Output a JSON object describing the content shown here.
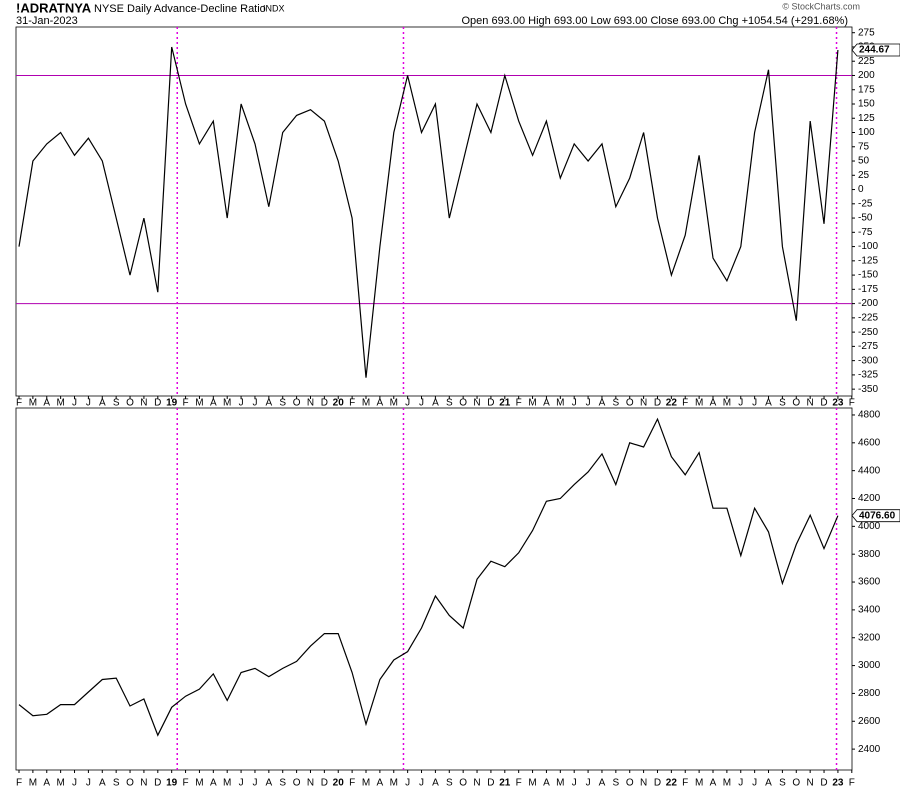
{
  "header": {
    "symbol": "!ADRATNYA",
    "name": "NYSE Daily Advance-Decline Ratio",
    "exchange": "INDX",
    "date": "31-Jan-2023",
    "quote": "Open 693.00  High 693.00  Low 693.00  Close 693.00  Chg +1054.54 (+291.68%)",
    "credit": "© StockCharts.com"
  },
  "chart_data": [
    {
      "type": "line",
      "color": "#000000",
      "categories": [
        "F",
        "M",
        "A",
        "M",
        "J",
        "J",
        "A",
        "S",
        "O",
        "N",
        "D",
        "19",
        "F",
        "M",
        "A",
        "M",
        "J",
        "J",
        "A",
        "S",
        "O",
        "N",
        "D",
        "20",
        "F",
        "M",
        "A",
        "M",
        "J",
        "J",
        "A",
        "S",
        "O",
        "N",
        "D",
        "21",
        "F",
        "M",
        "A",
        "M",
        "J",
        "J",
        "A",
        "S",
        "O",
        "N",
        "D",
        "22",
        "F",
        "M",
        "A",
        "M",
        "J",
        "J",
        "A",
        "S",
        "O",
        "N",
        "D",
        "23",
        "F"
      ],
      "values": [
        -100,
        50,
        80,
        100,
        60,
        90,
        50,
        -50,
        -150,
        -50,
        -180,
        250,
        150,
        80,
        120,
        -50,
        150,
        80,
        -30,
        100,
        130,
        140,
        120,
        50,
        -50,
        -330,
        -100,
        100,
        200,
        100,
        150,
        -50,
        50,
        150,
        100,
        200,
        120,
        60,
        120,
        20,
        80,
        50,
        80,
        -30,
        20,
        100,
        -50,
        -150,
        -80,
        60,
        -120,
        -160,
        -100,
        100,
        210,
        -100,
        -230,
        120,
        -60,
        244.67,
        null
      ],
      "last_label": "244.67",
      "ylim": [
        -362,
        285
      ],
      "yticks": [
        -350,
        -325,
        -300,
        -275,
        -250,
        -225,
        -200,
        -175,
        -150,
        -125,
        -100,
        -75,
        -50,
        -25,
        0,
        25,
        50,
        75,
        100,
        125,
        150,
        175,
        200,
        225,
        250,
        275
      ],
      "hlines": [
        200,
        -200
      ],
      "hline_color": "#b000b0",
      "vlines": [
        11.4,
        27.7,
        58.9
      ],
      "vline_color": "#e000e0"
    },
    {
      "type": "line",
      "color": "#000000",
      "categories": [
        "F",
        "M",
        "A",
        "M",
        "J",
        "J",
        "A",
        "S",
        "O",
        "N",
        "D",
        "19",
        "F",
        "M",
        "A",
        "M",
        "J",
        "J",
        "A",
        "S",
        "O",
        "N",
        "D",
        "20",
        "F",
        "M",
        "A",
        "M",
        "J",
        "J",
        "A",
        "S",
        "O",
        "N",
        "D",
        "21",
        "F",
        "M",
        "A",
        "M",
        "J",
        "J",
        "A",
        "S",
        "O",
        "N",
        "D",
        "22",
        "F",
        "M",
        "A",
        "M",
        "J",
        "J",
        "A",
        "S",
        "O",
        "N",
        "D",
        "23",
        "F"
      ],
      "values": [
        2720,
        2640,
        2650,
        2720,
        2720,
        2810,
        2900,
        2910,
        2710,
        2760,
        2500,
        2700,
        2780,
        2830,
        2940,
        2750,
        2950,
        2980,
        2920,
        2980,
        3030,
        3140,
        3230,
        3230,
        2950,
        2580,
        2900,
        3040,
        3100,
        3270,
        3500,
        3360,
        3270,
        3620,
        3750,
        3710,
        3810,
        3970,
        4180,
        4200,
        4300,
        4390,
        4520,
        4300,
        4600,
        4570,
        4770,
        4500,
        4370,
        4530,
        4130,
        4130,
        3790,
        4130,
        3960,
        3590,
        3870,
        4080,
        3840,
        4076.6,
        null
      ],
      "last_label": "4076.60",
      "ylim": [
        2250,
        4850
      ],
      "yticks": [
        2400,
        2600,
        2800,
        3000,
        3200,
        3400,
        3600,
        3800,
        4000,
        4200,
        4400,
        4600,
        4800
      ],
      "vlines": [
        11.4,
        27.7,
        58.9
      ],
      "vline_color": "#e000e0"
    }
  ]
}
